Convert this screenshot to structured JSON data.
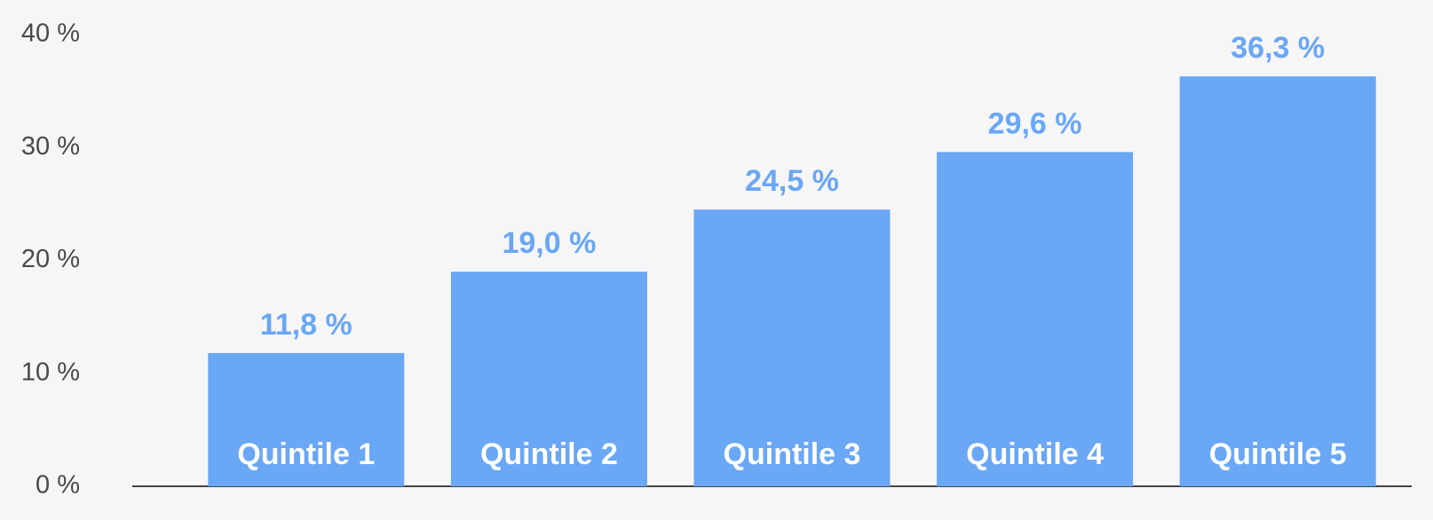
{
  "chart_data": {
    "type": "bar",
    "categories": [
      "Quintile 1",
      "Quintile 2",
      "Quintile 3",
      "Quintile 4",
      "Quintile 5"
    ],
    "values": [
      11.8,
      19.0,
      24.5,
      29.6,
      36.3
    ],
    "value_labels": [
      "11,8 %",
      "19,0 %",
      "24,5 %",
      "29,6 %",
      "36,3 %"
    ],
    "color": "#6aa7f5",
    "ylim": [
      0,
      40
    ],
    "yticks": [
      {
        "value": 0,
        "label": "0 %"
      },
      {
        "value": 10,
        "label": "10 %"
      },
      {
        "value": 20,
        "label": "20 %"
      },
      {
        "value": 30,
        "label": "30 %"
      },
      {
        "value": 40,
        "label": "40 %"
      }
    ],
    "grid": false
  }
}
